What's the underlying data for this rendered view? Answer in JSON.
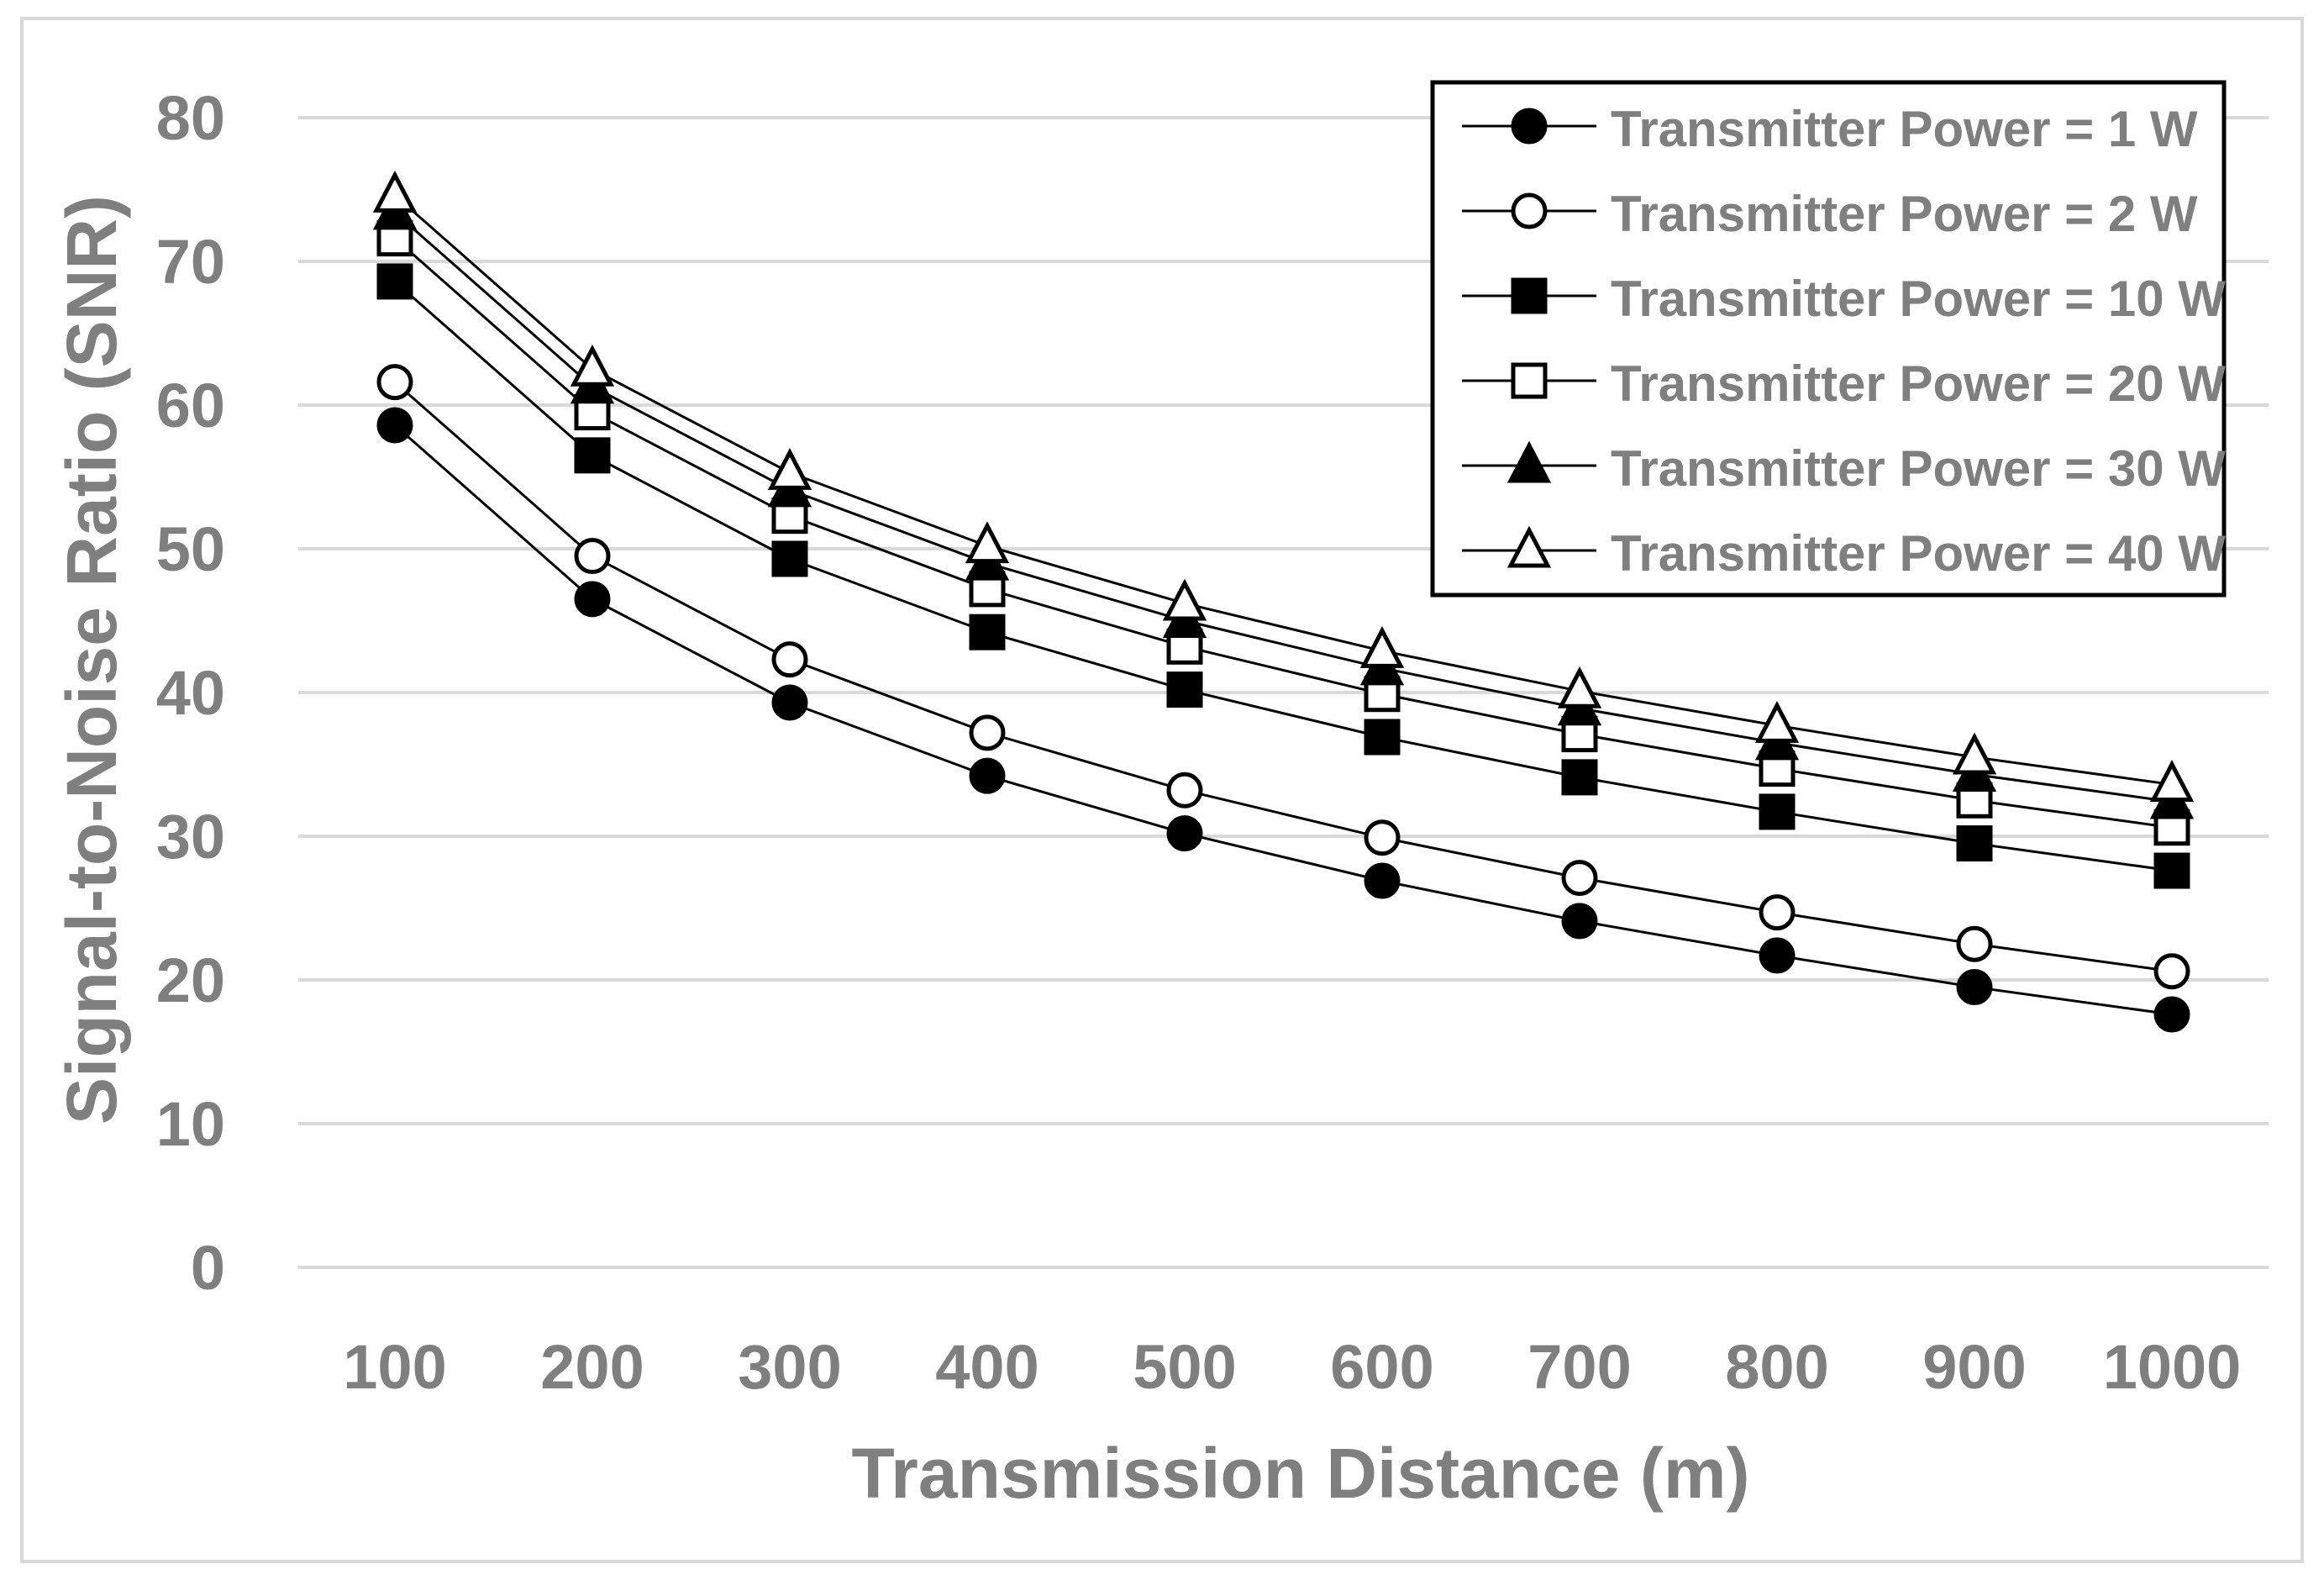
{
  "chart_data": {
    "type": "line",
    "title": "",
    "xlabel": "Transmission Distance (m)",
    "ylabel": "Signal-to-Noise Ratio (SNR)",
    "categories": [
      "100",
      "200",
      "300",
      "400",
      "500",
      "600",
      "700",
      "800",
      "900",
      "1000"
    ],
    "ylim": [
      0,
      80
    ],
    "yticks": [
      0,
      10,
      20,
      30,
      40,
      50,
      60,
      70,
      80
    ],
    "grid": true,
    "legend_position": "top-right",
    "series": [
      {
        "name": "Transmitter Power = 1 W",
        "marker": "circle-filled",
        "values": [
          58.6,
          46.5,
          39.3,
          34.2,
          30.2,
          26.9,
          24.1,
          21.7,
          19.5,
          17.6
        ]
      },
      {
        "name": "Transmitter Power = 2 W",
        "marker": "circle-open",
        "values": [
          61.6,
          49.5,
          42.3,
          37.2,
          33.2,
          29.9,
          27.1,
          24.7,
          22.5,
          20.6
        ]
      },
      {
        "name": "Transmitter Power = 10 W",
        "marker": "square-filled",
        "values": [
          68.6,
          56.5,
          49.3,
          44.2,
          40.2,
          36.9,
          34.1,
          31.7,
          29.5,
          27.6
        ]
      },
      {
        "name": "Transmitter Power = 20 W",
        "marker": "square-open",
        "values": [
          71.6,
          59.5,
          52.3,
          47.2,
          43.2,
          39.9,
          37.1,
          34.7,
          32.5,
          30.6
        ]
      },
      {
        "name": "Transmitter Power = 30 W",
        "marker": "triangle-filled",
        "values": [
          73.4,
          61.3,
          54.1,
          49.0,
          45.0,
          41.7,
          38.9,
          36.5,
          34.3,
          32.4
        ]
      },
      {
        "name": "Transmitter Power = 40 W",
        "marker": "triangle-open",
        "values": [
          74.6,
          62.5,
          55.3,
          50.2,
          46.2,
          42.9,
          40.1,
          37.7,
          35.5,
          33.6
        ]
      }
    ]
  },
  "colors": {
    "background": "#ffffff",
    "frame": "#d9d9d9",
    "gridline": "#d9d9d9",
    "series_line": "#000000",
    "marker": "#000000",
    "text": "#7f7f7f"
  }
}
